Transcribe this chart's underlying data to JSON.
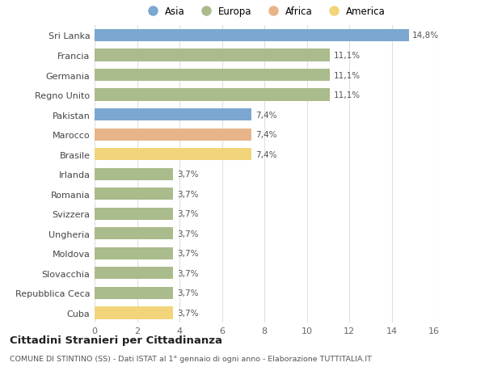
{
  "countries": [
    "Sri Lanka",
    "Francia",
    "Germania",
    "Regno Unito",
    "Pakistan",
    "Marocco",
    "Brasile",
    "Irlanda",
    "Romania",
    "Svizzera",
    "Ungheria",
    "Moldova",
    "Slovacchia",
    "Repubblica Ceca",
    "Cuba"
  ],
  "values": [
    14.8,
    11.1,
    11.1,
    11.1,
    7.4,
    7.4,
    7.4,
    3.7,
    3.7,
    3.7,
    3.7,
    3.7,
    3.7,
    3.7,
    3.7
  ],
  "labels": [
    "14,8%",
    "11,1%",
    "11,1%",
    "11,1%",
    "7,4%",
    "7,4%",
    "7,4%",
    "3,7%",
    "3,7%",
    "3,7%",
    "3,7%",
    "3,7%",
    "3,7%",
    "3,7%",
    "3,7%"
  ],
  "continents": [
    "Asia",
    "Europa",
    "Europa",
    "Europa",
    "Asia",
    "Africa",
    "America",
    "Europa",
    "Europa",
    "Europa",
    "Europa",
    "Europa",
    "Europa",
    "Europa",
    "America"
  ],
  "colors": {
    "Asia": "#7BA7D0",
    "Europa": "#AABB8C",
    "Africa": "#E8B48A",
    "America": "#F2D47A"
  },
  "legend_order": [
    "Asia",
    "Europa",
    "Africa",
    "America"
  ],
  "xlim": [
    0,
    16
  ],
  "xticks": [
    0,
    2,
    4,
    6,
    8,
    10,
    12,
    14,
    16
  ],
  "title_main": "Cittadini Stranieri per Cittadinanza",
  "title_sub": "COMUNE DI STINTINO (SS) - Dati ISTAT al 1° gennaio di ogni anno - Elaborazione TUTTITALIA.IT",
  "background_color": "#ffffff",
  "grid_color": "#e0e0e0"
}
